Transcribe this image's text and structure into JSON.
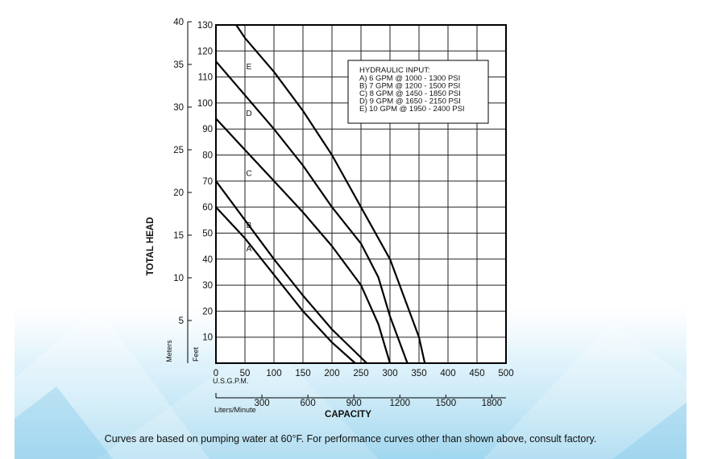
{
  "chart_data": {
    "type": "line",
    "xlabel": "CAPACITY",
    "ylabel": "TOTAL HEAD",
    "x_unit_label": "U.S.G.P.M.",
    "x_secondary_unit_label": "Liters/Minute",
    "y_unit_label_feet": "Feet",
    "y_unit_label_meters": "Meters",
    "xlim": [
      0,
      500
    ],
    "ylim": [
      0,
      130
    ],
    "x_ticks": [
      "0",
      "50",
      "100",
      "150",
      "200",
      "250",
      "300",
      "350",
      "400",
      "450",
      "500"
    ],
    "y_ticks_feet": [
      "10",
      "20",
      "30",
      "40",
      "50",
      "60",
      "70",
      "80",
      "90",
      "100",
      "110",
      "120",
      "130"
    ],
    "y_ticks_meters": [
      "5",
      "10",
      "15",
      "20",
      "25",
      "30",
      "35",
      "40"
    ],
    "x_secondary_ticks": [
      "300",
      "600",
      "900",
      "1200",
      "1500",
      "1800"
    ],
    "grid": true,
    "legend": {
      "title": "HYDRAULIC INPUT:",
      "position": "top-right",
      "entries": [
        "A) 6 GPM @ 1000 - 1300 PSI",
        "B) 7 GPM @ 1200 - 1500 PSI",
        "C) 8 GPM @ 1450 - 1850 PSI",
        "D) 9 GPM @ 1650 - 2150 PSI",
        "E) 10 GPM @ 1950 - 2400 PSI"
      ]
    },
    "series": [
      {
        "name": "A",
        "x": [
          0,
          50,
          100,
          150,
          200,
          240
        ],
        "y": [
          60,
          48,
          34,
          20,
          8,
          0
        ]
      },
      {
        "name": "B",
        "x": [
          0,
          50,
          100,
          150,
          200,
          260
        ],
        "y": [
          70,
          55,
          40,
          26,
          13,
          0
        ]
      },
      {
        "name": "C",
        "x": [
          0,
          50,
          100,
          150,
          200,
          250,
          280,
          300
        ],
        "y": [
          94,
          82,
          70,
          58,
          45,
          30,
          15,
          0
        ]
      },
      {
        "name": "D",
        "x": [
          0,
          50,
          100,
          150,
          200,
          250,
          280,
          300,
          330
        ],
        "y": [
          116,
          103,
          90,
          76,
          60,
          46,
          33,
          18,
          0
        ]
      },
      {
        "name": "E",
        "x": [
          35,
          50,
          100,
          150,
          200,
          250,
          300,
          330,
          350,
          360
        ],
        "y": [
          130,
          125,
          112,
          97,
          80,
          60,
          40,
          22,
          10,
          0
        ]
      }
    ]
  },
  "caption": "Curves are based on pumping water at 60°F. For performance curves other than shown above, consult factory."
}
